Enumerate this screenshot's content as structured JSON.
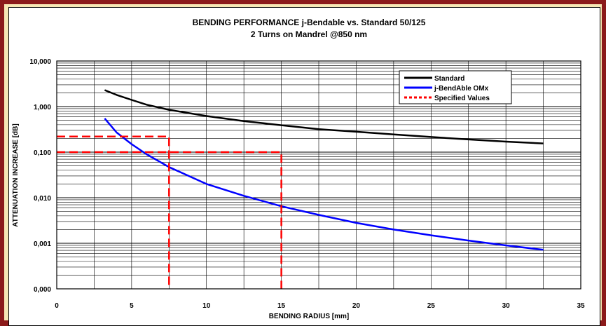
{
  "chart_data": {
    "type": "line",
    "title": "BENDING PERFORMANCE j-Bendable vs. Standard 50/125",
    "subtitle": "2 Turns on Mandrel @850 nm",
    "xlabel": "BENDING RADIUS [mm]",
    "ylabel": "ATTENUATION INCREASE [dB]",
    "xlim": [
      0,
      35
    ],
    "ylim": [
      0.0001,
      10
    ],
    "yscale": "log",
    "grid": true,
    "legend_position": "top-right",
    "x_ticks": [
      "0",
      "5",
      "10",
      "15",
      "20",
      "25",
      "30",
      "35"
    ],
    "y_ticks": [
      "0,000",
      "0,001",
      "0,010",
      "0,100",
      "1,000",
      "10,000"
    ],
    "series": [
      {
        "name": "Standard",
        "color": "#000000",
        "style": "solid",
        "x": [
          3.2,
          4,
          5,
          6,
          7.5,
          10,
          12.5,
          15,
          17.5,
          20,
          22.5,
          25,
          27.5,
          30,
          32.5
        ],
        "y": [
          2.3,
          1.8,
          1.4,
          1.1,
          0.85,
          0.62,
          0.48,
          0.39,
          0.32,
          0.28,
          0.245,
          0.215,
          0.19,
          0.17,
          0.155
        ]
      },
      {
        "name": "j-BendAble OMx",
        "color": "#0000ff",
        "style": "solid",
        "x": [
          3.2,
          4,
          5,
          6,
          7.5,
          10,
          12.5,
          15,
          17.5,
          20,
          22.5,
          25,
          27.5,
          30,
          32.5
        ],
        "y": [
          0.55,
          0.27,
          0.15,
          0.09,
          0.047,
          0.02,
          0.011,
          0.0065,
          0.0042,
          0.0028,
          0.002,
          0.0015,
          0.00115,
          0.0009,
          0.00072
        ]
      },
      {
        "name": "Specified Values",
        "color": "#ff0000",
        "style": "dashed",
        "segments": [
          [
            [
              0,
              0.22
            ],
            [
              7.5,
              0.22
            ],
            [
              7.5,
              0.0001
            ]
          ],
          [
            [
              0,
              0.1
            ],
            [
              15,
              0.1
            ],
            [
              15,
              0.0001
            ]
          ]
        ]
      }
    ]
  }
}
